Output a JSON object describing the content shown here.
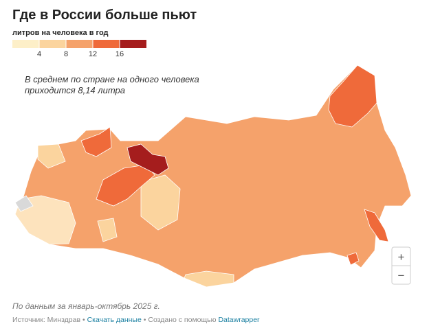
{
  "header": {
    "title": "Где в России больше пьют"
  },
  "legend": {
    "title": "литров на человека в год",
    "ticks": [
      4,
      8,
      12,
      16
    ],
    "colors": [
      "#fdefc8",
      "#fbd49e",
      "#f5a26b",
      "#ef6a3a",
      "#a51d1d"
    ]
  },
  "annotation": {
    "lines": [
      "В среднем по стране на одного человека",
      "приходится 8,14 литра"
    ]
  },
  "controls": {
    "zoom_in": "+",
    "zoom_out": "−"
  },
  "footer": {
    "note": "По данным за январь-октябрь 2025 г.",
    "source": "Источник: Минздрав",
    "separator": "•",
    "download": "Скачать данные",
    "credit": "Создано с помощью",
    "credit_link": "Datawrapper"
  }
}
